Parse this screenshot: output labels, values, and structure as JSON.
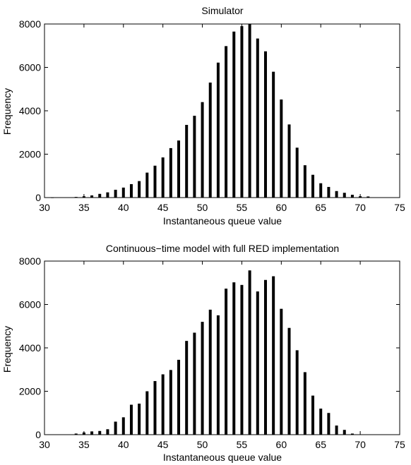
{
  "chart_data": [
    {
      "type": "bar",
      "title": "Simulator",
      "xlabel": "Instantaneous queue value",
      "ylabel": "Frequency",
      "xlim": [
        30,
        75
      ],
      "ylim": [
        0,
        8000
      ],
      "xticks": [
        30,
        35,
        40,
        45,
        50,
        55,
        60,
        65,
        70,
        75
      ],
      "yticks": [
        0,
        2000,
        4000,
        6000,
        8000
      ],
      "x": [
        31,
        32,
        33,
        34,
        35,
        36,
        37,
        38,
        39,
        40,
        41,
        42,
        43,
        44,
        45,
        46,
        47,
        48,
        49,
        50,
        51,
        52,
        53,
        54,
        55,
        56,
        57,
        58,
        59,
        60,
        61,
        62,
        63,
        64,
        65,
        66,
        67,
        68,
        69,
        70,
        71,
        72
      ],
      "values": [
        5,
        10,
        15,
        30,
        60,
        100,
        170,
        240,
        360,
        460,
        620,
        760,
        1150,
        1470,
        1850,
        2280,
        2630,
        3350,
        3770,
        4400,
        5300,
        6220,
        6980,
        7650,
        7900,
        8000,
        7330,
        6740,
        5800,
        4520,
        3370,
        2300,
        1490,
        1050,
        660,
        490,
        300,
        220,
        130,
        60,
        50,
        15
      ],
      "grid": false,
      "bar_color": "#000000"
    },
    {
      "type": "bar",
      "title": "Continuous−time model with full RED implementation",
      "xlabel": "Instantaneous queue value",
      "ylabel": "Frequency",
      "xlim": [
        30,
        75
      ],
      "ylim": [
        0,
        8000
      ],
      "xticks": [
        30,
        35,
        40,
        45,
        50,
        55,
        60,
        65,
        70,
        75
      ],
      "yticks": [
        0,
        2000,
        4000,
        6000,
        8000
      ],
      "x": [
        34,
        35,
        36,
        37,
        38,
        39,
        40,
        41,
        42,
        43,
        44,
        45,
        46,
        47,
        48,
        49,
        50,
        51,
        52,
        53,
        54,
        55,
        56,
        57,
        58,
        59,
        60,
        61,
        62,
        63,
        64,
        65,
        66,
        67,
        68,
        69
      ],
      "values": [
        50,
        100,
        150,
        170,
        250,
        600,
        800,
        1380,
        1430,
        2000,
        2470,
        2780,
        2980,
        3450,
        4320,
        4700,
        5200,
        5760,
        5500,
        6730,
        7020,
        6900,
        7570,
        6600,
        7130,
        7300,
        5800,
        4920,
        3890,
        2880,
        1800,
        1200,
        1000,
        420,
        220,
        50
      ],
      "grid": false,
      "bar_color": "#000000"
    }
  ]
}
